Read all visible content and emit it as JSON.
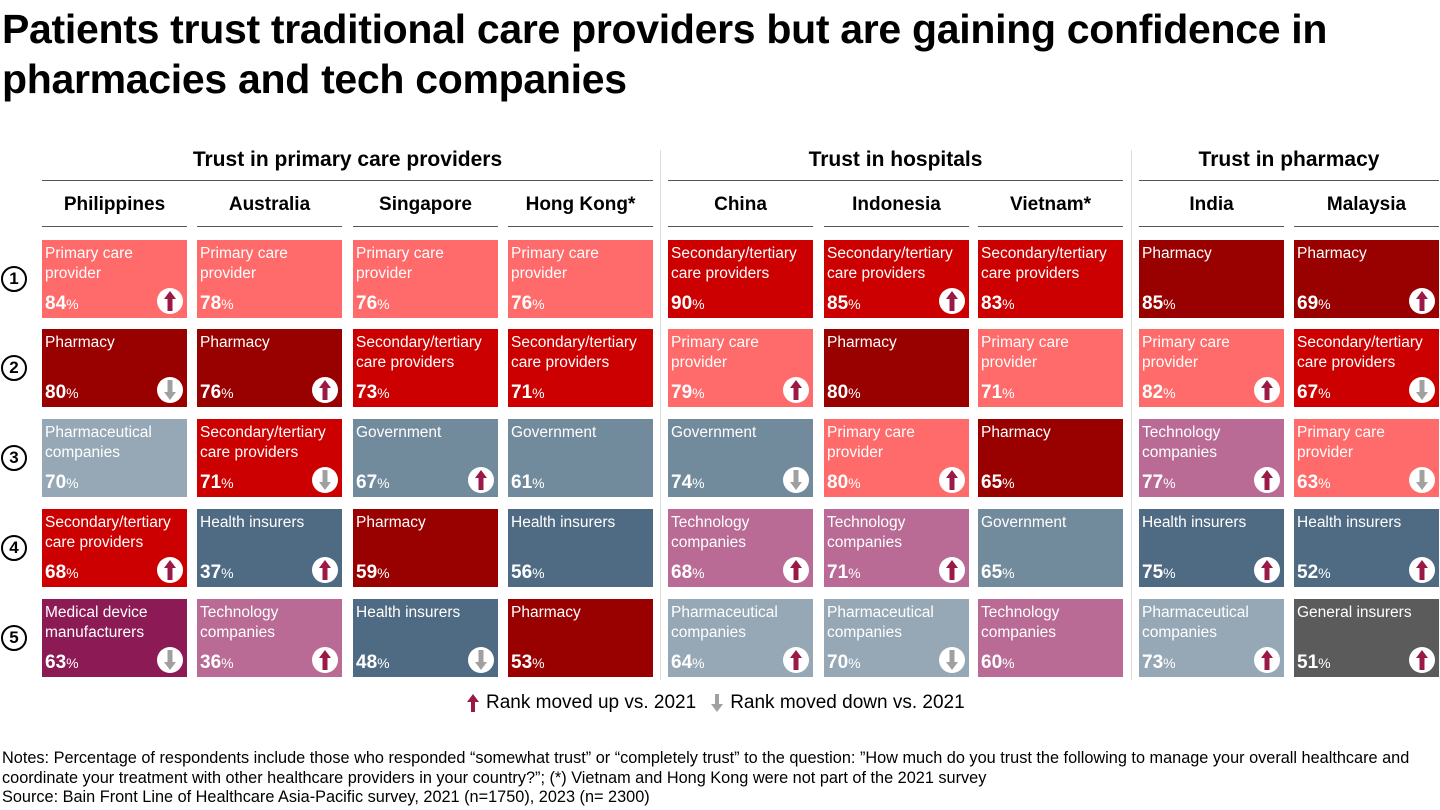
{
  "title": "Patients trust traditional care providers but are gaining confidence in pharmacies and tech companies",
  "colors": {
    "primary_care": "#ff6a6a",
    "pharmacy": "#990000",
    "secondary": "#cc0000",
    "pharmaceutical": "#96a8b5",
    "government": "#718a9c",
    "health_insurers": "#4f6b84",
    "technology": "#b96b96",
    "medical_device": "#8b1a55",
    "general_insurers": "#5b5b5b",
    "arrow_up": "#9b1a45",
    "arrow_down": "#a0a0a0"
  },
  "chart_data": {
    "type": "table",
    "title": "Patients trust traditional care providers but are gaining confidence in pharmacies and tech companies",
    "ranks": [
      "1",
      "2",
      "3",
      "4",
      "5"
    ],
    "groups": [
      {
        "label": "Trust in primary care providers",
        "countries": [
          0,
          1,
          2,
          3
        ]
      },
      {
        "label": "Trust in hospitals",
        "countries": [
          4,
          5,
          6
        ]
      },
      {
        "label": "Trust in pharmacy",
        "countries": [
          7,
          8
        ]
      }
    ],
    "countries": [
      {
        "name": "Philippines",
        "cells": [
          {
            "label": "Primary care provider",
            "cat": "primary_care",
            "value": 84,
            "trend": "up"
          },
          {
            "label": "Pharmacy",
            "cat": "pharmacy",
            "value": 80,
            "trend": "down"
          },
          {
            "label": "Pharmaceutical companies",
            "cat": "pharmaceutical",
            "value": 70,
            "trend": "none"
          },
          {
            "label": "Secondary/tertiary care providers",
            "cat": "secondary",
            "value": 68,
            "trend": "up"
          },
          {
            "label": "Medical device manufacturers",
            "cat": "medical_device",
            "value": 63,
            "trend": "down"
          }
        ]
      },
      {
        "name": "Australia",
        "cells": [
          {
            "label": "Primary care provider",
            "cat": "primary_care",
            "value": 78,
            "trend": "none"
          },
          {
            "label": "Pharmacy",
            "cat": "pharmacy",
            "value": 76,
            "trend": "up"
          },
          {
            "label": "Secondary/tertiary care providers",
            "cat": "secondary",
            "value": 71,
            "trend": "down"
          },
          {
            "label": "Health insurers",
            "cat": "health_insurers",
            "value": 37,
            "trend": "up"
          },
          {
            "label": "Technology companies",
            "cat": "technology",
            "value": 36,
            "trend": "up"
          }
        ]
      },
      {
        "name": "Singapore",
        "cells": [
          {
            "label": "Primary care provider",
            "cat": "primary_care",
            "value": 76,
            "trend": "none"
          },
          {
            "label": "Secondary/tertiary care providers",
            "cat": "secondary",
            "value": 73,
            "trend": "none"
          },
          {
            "label": "Government",
            "cat": "government",
            "value": 67,
            "trend": "up"
          },
          {
            "label": "Pharmacy",
            "cat": "pharmacy",
            "value": 59,
            "trend": "none"
          },
          {
            "label": "Health insurers",
            "cat": "health_insurers",
            "value": 48,
            "trend": "down"
          }
        ]
      },
      {
        "name": "Hong Kong*",
        "cells": [
          {
            "label": "Primary care provider",
            "cat": "primary_care",
            "value": 76,
            "trend": "none"
          },
          {
            "label": "Secondary/tertiary care providers",
            "cat": "secondary",
            "value": 71,
            "trend": "none"
          },
          {
            "label": "Government",
            "cat": "government",
            "value": 61,
            "trend": "none"
          },
          {
            "label": "Health insurers",
            "cat": "health_insurers",
            "value": 56,
            "trend": "none"
          },
          {
            "label": "Pharmacy",
            "cat": "pharmacy",
            "value": 53,
            "trend": "none"
          }
        ]
      },
      {
        "name": "China",
        "cells": [
          {
            "label": "Secondary/tertiary care providers",
            "cat": "secondary",
            "value": 90,
            "trend": "none"
          },
          {
            "label": "Primary care provider",
            "cat": "primary_care",
            "value": 79,
            "trend": "up"
          },
          {
            "label": "Government",
            "cat": "government",
            "value": 74,
            "trend": "down"
          },
          {
            "label": "Technology companies",
            "cat": "technology",
            "value": 68,
            "trend": "up"
          },
          {
            "label": "Pharmaceutical companies",
            "cat": "pharmaceutical",
            "value": 64,
            "trend": "up"
          }
        ]
      },
      {
        "name": "Indonesia",
        "cells": [
          {
            "label": "Secondary/tertiary care providers",
            "cat": "secondary",
            "value": 85,
            "trend": "up"
          },
          {
            "label": "Pharmacy",
            "cat": "pharmacy",
            "value": 80,
            "trend": "none"
          },
          {
            "label": "Primary care provider",
            "cat": "primary_care",
            "value": 80,
            "trend": "up"
          },
          {
            "label": "Technology companies",
            "cat": "technology",
            "value": 71,
            "trend": "up"
          },
          {
            "label": "Pharmaceutical companies",
            "cat": "pharmaceutical",
            "value": 70,
            "trend": "down"
          }
        ]
      },
      {
        "name": "Vietnam*",
        "cells": [
          {
            "label": "Secondary/tertiary care providers",
            "cat": "secondary",
            "value": 83,
            "trend": "none"
          },
          {
            "label": "Primary care provider",
            "cat": "primary_care",
            "value": 71,
            "trend": "none"
          },
          {
            "label": "Pharmacy",
            "cat": "pharmacy",
            "value": 65,
            "trend": "none"
          },
          {
            "label": "Government",
            "cat": "government",
            "value": 65,
            "trend": "none"
          },
          {
            "label": "Technology companies",
            "cat": "technology",
            "value": 60,
            "trend": "none"
          }
        ]
      },
      {
        "name": "India",
        "cells": [
          {
            "label": "Pharmacy",
            "cat": "pharmacy",
            "value": 85,
            "trend": "none"
          },
          {
            "label": "Primary care provider",
            "cat": "primary_care",
            "value": 82,
            "trend": "up"
          },
          {
            "label": "Technology companies",
            "cat": "technology",
            "value": 77,
            "trend": "up"
          },
          {
            "label": "Health insurers",
            "cat": "health_insurers",
            "value": 75,
            "trend": "up"
          },
          {
            "label": "Pharmaceutical companies",
            "cat": "pharmaceutical",
            "value": 73,
            "trend": "up"
          }
        ]
      },
      {
        "name": "Malaysia",
        "cells": [
          {
            "label": "Pharmacy",
            "cat": "pharmacy",
            "value": 69,
            "trend": "up"
          },
          {
            "label": "Secondary/tertiary care providers",
            "cat": "secondary",
            "value": 67,
            "trend": "down"
          },
          {
            "label": "Primary care provider",
            "cat": "primary_care",
            "value": 63,
            "trend": "down"
          },
          {
            "label": "Health insurers",
            "cat": "health_insurers",
            "value": 52,
            "trend": "up"
          },
          {
            "label": "General insurers",
            "cat": "general_insurers",
            "value": 51,
            "trend": "up"
          }
        ]
      }
    ],
    "unit": "%"
  },
  "legend": {
    "up": "Rank moved up vs. 2021",
    "down": "Rank moved down vs. 2021"
  },
  "notes": "Notes: Percentage of respondents include those who responded “somewhat trust” or “completely trust” to the question: ”How much do you trust the following to manage your overall healthcare and coordinate your treatment with other healthcare providers in your country?”; (*) Vietnam and Hong Kong were not part of the 2021 survey",
  "source": "Source: Bain Front Line of Healthcare Asia-Pacific survey, 2021 (n=1750), 2023 (n= 2300)"
}
